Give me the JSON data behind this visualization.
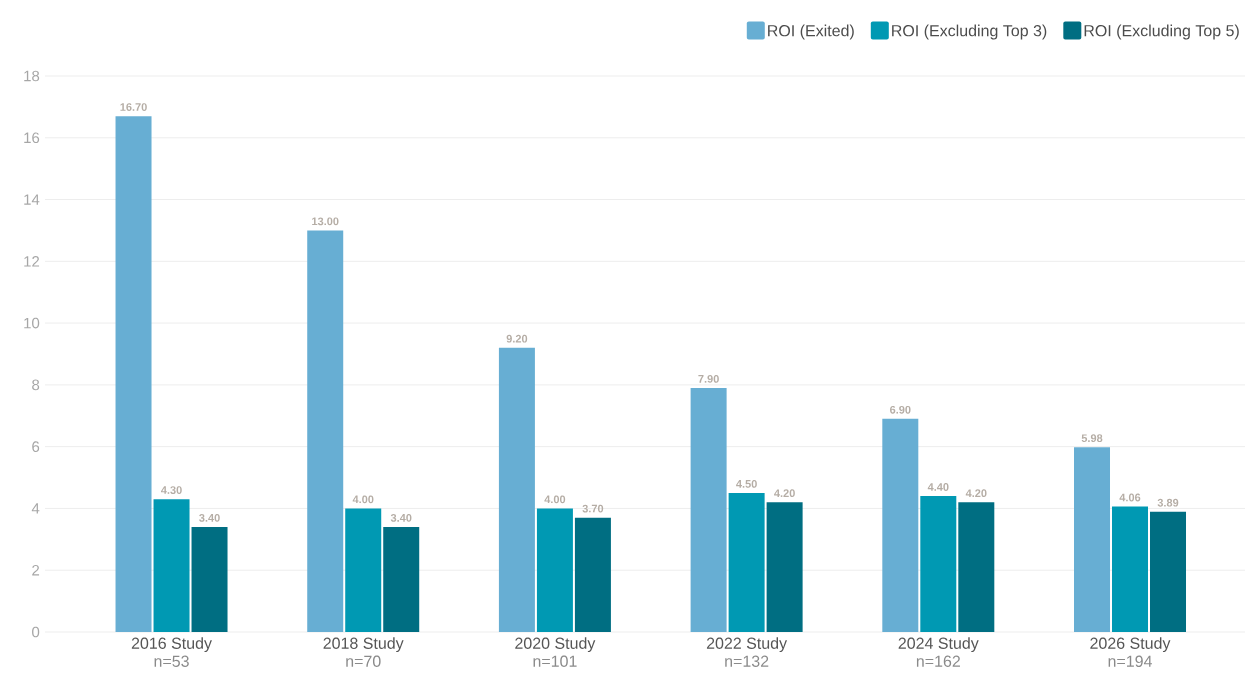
{
  "chart_data": {
    "type": "bar",
    "categories": [
      "2016 Study",
      "2018 Study",
      "2020 Study",
      "2022 Study",
      "2024 Study",
      "2026 Study"
    ],
    "annotations": [
      "n=53",
      "n=70",
      "n=101",
      "n=132",
      "n=162",
      "n=194"
    ],
    "series": [
      {
        "name": "ROI (Exited)",
        "color": "#67aed3",
        "values": [
          16.7,
          13.0,
          9.2,
          7.9,
          6.9,
          5.98
        ],
        "value_labels": [
          "16.70",
          "13.00",
          "9.20",
          "7.90",
          "6.90",
          "5.98"
        ]
      },
      {
        "name": "ROI (Excluding Top 3)",
        "color": "#0099b3",
        "values": [
          4.3,
          4.0,
          4.0,
          4.5,
          4.4,
          4.06
        ],
        "value_labels": [
          "4.30",
          "4.00",
          "4.00",
          "4.50",
          "4.40",
          "4.06"
        ]
      },
      {
        "name": "ROI (Excluding Top 5)",
        "color": "#006e82",
        "values": [
          3.4,
          3.4,
          3.7,
          4.2,
          4.2,
          3.89
        ],
        "value_labels": [
          "3.40",
          "3.40",
          "3.70",
          "4.20",
          "4.20",
          "3.89"
        ]
      }
    ],
    "ylim": [
      0,
      18
    ],
    "yticks": [
      0,
      2,
      4,
      6,
      8,
      10,
      12,
      14,
      16,
      18
    ],
    "grid": "y",
    "legend": "top right"
  }
}
